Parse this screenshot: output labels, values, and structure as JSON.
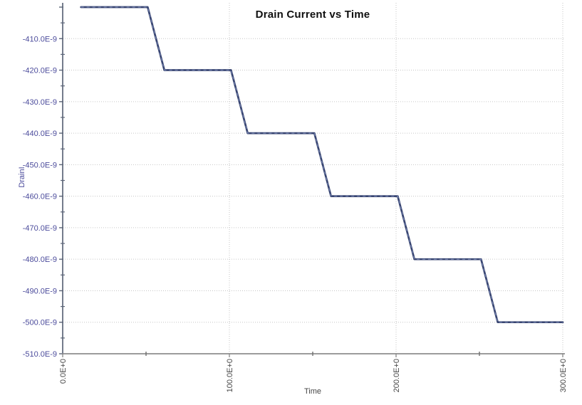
{
  "title": "Drain Current vs Time",
  "chart_data": {
    "type": "line",
    "title": "Drain Current vs Time",
    "xlabel": "Time",
    "ylabel": "DrainI",
    "xlim": [
      0,
      300
    ],
    "ylim": [
      -5.1e-07,
      -4e-07
    ],
    "grid": "dotted",
    "legend": "none",
    "x_ticks": {
      "major": [
        0,
        100,
        200,
        300
      ],
      "labels": [
        "0.0E+0",
        "100.0E+0",
        "200.0E+0",
        "300.0E+0"
      ],
      "minor": [
        50,
        150,
        250
      ]
    },
    "y_ticks": {
      "major": [
        -4e-07,
        -4.1e-07,
        -4.2e-07,
        -4.3e-07,
        -4.4e-07,
        -4.5e-07,
        -4.6e-07,
        -4.7e-07,
        -4.8e-07,
        -4.9e-07,
        -5e-07,
        -5.1e-07
      ],
      "labels": [
        "",
        "-410.0E-9",
        "-420.0E-9",
        "-430.0E-9",
        "-440.0E-9",
        "-450.0E-9",
        "-460.0E-9",
        "-470.0E-9",
        "-480.0E-9",
        "-490.0E-9",
        "-500.0E-9",
        "-510.0E-9"
      ],
      "minor": [
        -4.05e-07,
        -4.15e-07,
        -4.25e-07,
        -4.35e-07,
        -4.45e-07,
        -4.55e-07,
        -4.65e-07,
        -4.75e-07,
        -4.85e-07,
        -4.95e-07,
        -5.05e-07
      ]
    },
    "series": [
      {
        "name": "DrainI",
        "points": [
          [
            11,
            -4e-07
          ],
          [
            51,
            -4e-07
          ],
          [
            61,
            -4.2e-07
          ],
          [
            101,
            -4.2e-07
          ],
          [
            111,
            -4.4e-07
          ],
          [
            151,
            -4.4e-07
          ],
          [
            161,
            -4.6e-07
          ],
          [
            201,
            -4.6e-07
          ],
          [
            211,
            -4.8e-07
          ],
          [
            251,
            -4.8e-07
          ],
          [
            261,
            -5e-07
          ],
          [
            300,
            -5e-07
          ]
        ]
      }
    ]
  },
  "colors": {
    "background": "#ffffff",
    "title": "#101010",
    "series_line": "#394672",
    "series_line_highlight": "#8593c1",
    "grid": "#c6c6c6",
    "x_axis": "#8e8e8e",
    "y_axis": "#5c6578",
    "y_tick_text": "#4c4c9c",
    "x_tick_text": "#474747",
    "x_axis_title": "#474747",
    "y_axis_title": "#4c4c9c"
  }
}
